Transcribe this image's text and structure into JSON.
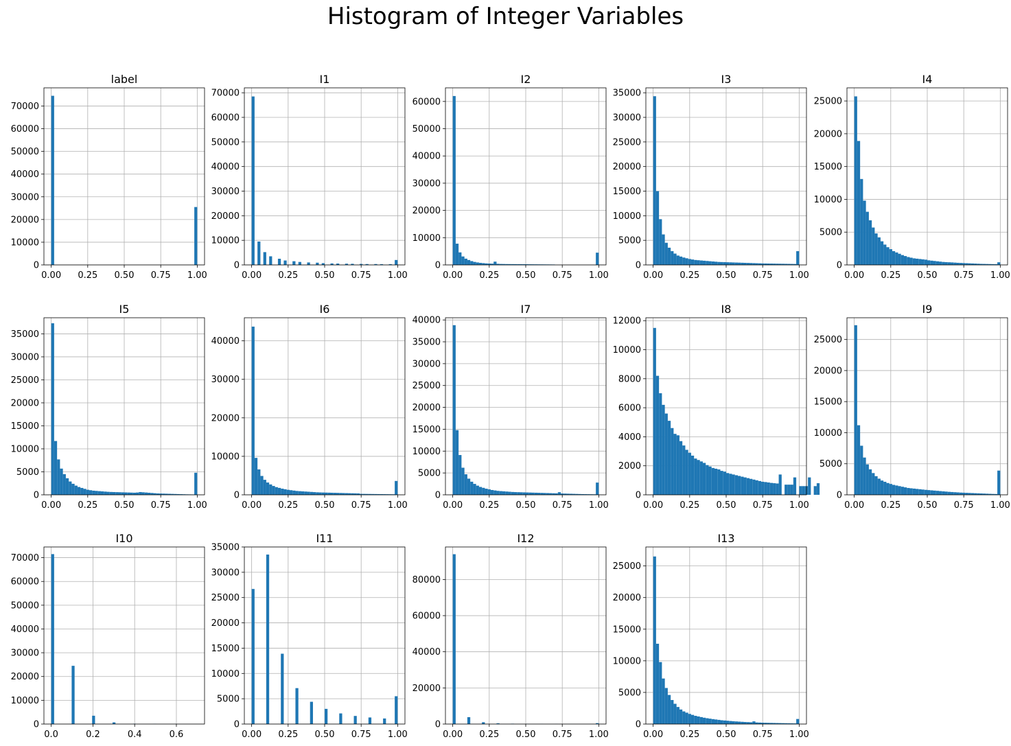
{
  "title": "Histogram of Integer Variables",
  "colors": {
    "bar": "#1f77b4",
    "grid": "#b0b0b0",
    "axis": "#000000"
  },
  "chart_data": [
    {
      "type": "bar",
      "title": "label",
      "grid": true,
      "xlim": [
        -0.05,
        1.05
      ],
      "ylim": [
        0,
        78000
      ],
      "xticks": [
        0,
        0.25,
        0.5,
        0.75,
        1
      ],
      "xtick_labels": [
        "0.00",
        "0.25",
        "0.50",
        "0.75",
        "1.00"
      ],
      "yticks": [
        0,
        10000,
        20000,
        30000,
        40000,
        50000,
        60000,
        70000
      ],
      "bins": [
        [
          0.0,
          0.02,
          74500
        ],
        [
          0.98,
          1.0,
          25500
        ]
      ]
    },
    {
      "type": "bar",
      "title": "I1",
      "grid": true,
      "xlim": [
        -0.05,
        1.05
      ],
      "ylim": [
        0,
        72000
      ],
      "xticks": [
        0,
        0.25,
        0.5,
        0.75,
        1
      ],
      "xtick_labels": [
        "0.00",
        "0.25",
        "0.50",
        "0.75",
        "1.00"
      ],
      "yticks": [
        0,
        10000,
        20000,
        30000,
        40000,
        50000,
        60000,
        70000
      ],
      "bins": [
        [
          0.0,
          0.02,
          68500
        ],
        [
          0.04,
          0.06,
          9500
        ],
        [
          0.08,
          0.1,
          5200
        ],
        [
          0.12,
          0.14,
          3500
        ],
        [
          0.18,
          0.2,
          2500
        ],
        [
          0.22,
          0.24,
          1800
        ],
        [
          0.28,
          0.3,
          1500
        ],
        [
          0.32,
          0.34,
          1200
        ],
        [
          0.38,
          0.4,
          1000
        ],
        [
          0.44,
          0.46,
          900
        ],
        [
          0.48,
          0.5,
          700
        ],
        [
          0.54,
          0.56,
          600
        ],
        [
          0.58,
          0.6,
          550
        ],
        [
          0.64,
          0.66,
          500
        ],
        [
          0.68,
          0.7,
          450
        ],
        [
          0.74,
          0.76,
          400
        ],
        [
          0.78,
          0.8,
          350
        ],
        [
          0.84,
          0.86,
          350
        ],
        [
          0.88,
          0.9,
          300
        ],
        [
          0.94,
          0.96,
          300
        ],
        [
          0.98,
          1.0,
          2000
        ]
      ]
    },
    {
      "type": "bar",
      "title": "I2",
      "grid": true,
      "xlim": [
        -0.05,
        1.05
      ],
      "ylim": [
        0,
        65000
      ],
      "xticks": [
        0,
        0.25,
        0.5,
        0.75,
        1
      ],
      "xtick_labels": [
        "0.00",
        "0.25",
        "0.50",
        "0.75",
        "1.00"
      ],
      "yticks": [
        0,
        10000,
        20000,
        30000,
        40000,
        50000,
        60000
      ],
      "step": 0.02,
      "start": 0,
      "values": [
        62000,
        7800,
        4600,
        3100,
        2300,
        1800,
        1400,
        1100,
        900,
        750,
        650,
        550,
        500,
        450,
        1200,
        400,
        350,
        330,
        310,
        300,
        290,
        280,
        270,
        260,
        250,
        240,
        230,
        220,
        210,
        200,
        190,
        180,
        170,
        160,
        150,
        0,
        0,
        0,
        0,
        0,
        0,
        0,
        0,
        0,
        0,
        0,
        0,
        0,
        0,
        4500
      ]
    },
    {
      "type": "bar",
      "title": "I3",
      "grid": true,
      "xlim": [
        -0.05,
        1.05
      ],
      "ylim": [
        0,
        36000
      ],
      "xticks": [
        0,
        0.25,
        0.5,
        0.75,
        1
      ],
      "xtick_labels": [
        "0.00",
        "0.25",
        "0.50",
        "0.75",
        "1.00"
      ],
      "yticks": [
        0,
        5000,
        10000,
        15000,
        20000,
        25000,
        30000,
        35000
      ],
      "step": 0.02,
      "start": 0,
      "values": [
        34300,
        15000,
        9300,
        6200,
        4500,
        3500,
        2800,
        2300,
        1900,
        1700,
        1500,
        1350,
        1200,
        1100,
        1000,
        950,
        900,
        850,
        800,
        750,
        700,
        650,
        600,
        580,
        560,
        540,
        520,
        500,
        480,
        460,
        440,
        420,
        400,
        380,
        360,
        340,
        320,
        300,
        290,
        280,
        270,
        260,
        250,
        240,
        230,
        220,
        210,
        200,
        190,
        2800
      ]
    },
    {
      "type": "bar",
      "title": "I4",
      "grid": true,
      "xlim": [
        -0.05,
        1.05
      ],
      "ylim": [
        0,
        27000
      ],
      "xticks": [
        0,
        0.25,
        0.5,
        0.75,
        1
      ],
      "xtick_labels": [
        "0.00",
        "0.25",
        "0.50",
        "0.75",
        "1.00"
      ],
      "yticks": [
        0,
        5000,
        10000,
        15000,
        20000,
        25000
      ],
      "step": 0.02,
      "start": 0,
      "values": [
        25700,
        18900,
        13100,
        9800,
        8100,
        6800,
        5700,
        4800,
        4200,
        3600,
        3100,
        2700,
        2400,
        2100,
        1900,
        1700,
        1500,
        1350,
        1200,
        1100,
        1000,
        950,
        900,
        850,
        800,
        700,
        650,
        600,
        550,
        500,
        450,
        420,
        400,
        380,
        350,
        320,
        300,
        280,
        260,
        240,
        220,
        200,
        180,
        160,
        150,
        140,
        130,
        120,
        110,
        400
      ]
    },
    {
      "type": "bar",
      "title": "I5",
      "grid": true,
      "xlim": [
        -0.05,
        1.05
      ],
      "ylim": [
        0,
        38500
      ],
      "xticks": [
        0,
        0.25,
        0.5,
        0.75,
        1
      ],
      "xtick_labels": [
        "0.00",
        "0.25",
        "0.50",
        "0.75",
        "1.00"
      ],
      "yticks": [
        0,
        5000,
        10000,
        15000,
        20000,
        25000,
        30000,
        35000
      ],
      "step": 0.02,
      "start": 0,
      "values": [
        37300,
        11700,
        7700,
        5700,
        4500,
        3600,
        2900,
        2400,
        2000,
        1700,
        1500,
        1300,
        1100,
        1000,
        900,
        850,
        800,
        750,
        700,
        650,
        620,
        600,
        580,
        560,
        540,
        520,
        500,
        480,
        460,
        500,
        600,
        550,
        500,
        450,
        400,
        350,
        300,
        280,
        260,
        240,
        220,
        200,
        180,
        160,
        140,
        120,
        100,
        90,
        80,
        4800
      ]
    },
    {
      "type": "bar",
      "title": "I6",
      "grid": true,
      "xlim": [
        -0.05,
        1.05
      ],
      "ylim": [
        0,
        46000
      ],
      "xticks": [
        0,
        0.25,
        0.5,
        0.75,
        1
      ],
      "xtick_labels": [
        "0.00",
        "0.25",
        "0.50",
        "0.75",
        "1.00"
      ],
      "yticks": [
        0,
        10000,
        20000,
        30000,
        40000
      ],
      "step": 0.02,
      "start": 0,
      "values": [
        43700,
        9600,
        6600,
        4900,
        3900,
        3200,
        2700,
        2300,
        2000,
        1800,
        1600,
        1450,
        1300,
        1200,
        1100,
        1000,
        950,
        900,
        850,
        800,
        750,
        700,
        650,
        620,
        600,
        580,
        560,
        540,
        520,
        500,
        480,
        460,
        440,
        420,
        400,
        380,
        360,
        250,
        240,
        230,
        220,
        210,
        200,
        190,
        180,
        170,
        160,
        150,
        140,
        3600
      ]
    },
    {
      "type": "bar",
      "title": "I7",
      "grid": true,
      "xlim": [
        -0.05,
        1.05
      ],
      "ylim": [
        0,
        40500
      ],
      "xticks": [
        0,
        0.25,
        0.5,
        0.75,
        1
      ],
      "xtick_labels": [
        "0.00",
        "0.25",
        "0.50",
        "0.75",
        "1.00"
      ],
      "yticks": [
        0,
        5000,
        10000,
        15000,
        20000,
        25000,
        30000,
        35000,
        40000
      ],
      "step": 0.02,
      "start": 0,
      "values": [
        38800,
        14800,
        9100,
        6200,
        4700,
        3700,
        3000,
        2500,
        2100,
        1800,
        1600,
        1400,
        1250,
        1100,
        1000,
        900,
        850,
        800,
        750,
        700,
        650,
        620,
        600,
        580,
        560,
        540,
        520,
        500,
        480,
        460,
        440,
        420,
        400,
        380,
        360,
        340,
        600,
        300,
        280,
        260,
        240,
        220,
        200,
        180,
        160,
        150,
        140,
        130,
        120,
        2800
      ]
    },
    {
      "type": "bar",
      "title": "I8",
      "grid": true,
      "xlim": [
        -0.05,
        1.05
      ],
      "ylim": [
        0,
        12200
      ],
      "xticks": [
        0,
        0.25,
        0.5,
        0.75,
        1
      ],
      "xtick_labels": [
        "0.00",
        "0.25",
        "0.50",
        "0.75",
        "1.00"
      ],
      "yticks": [
        0,
        2000,
        4000,
        6000,
        8000,
        10000,
        12000
      ],
      "step": 0.02,
      "start": 0,
      "values": [
        11500,
        8200,
        7000,
        6200,
        5600,
        5100,
        4600,
        4200,
        4100,
        3700,
        3400,
        3100,
        2900,
        2700,
        2500,
        2400,
        2300,
        2200,
        2050,
        1950,
        1850,
        1800,
        1750,
        1650,
        1600,
        1500,
        1450,
        1400,
        1350,
        1300,
        1250,
        1200,
        1150,
        1100,
        1050,
        1000,
        950,
        900,
        880,
        850,
        820,
        800,
        780,
        1400,
        0,
        700,
        700,
        700,
        1200,
        0,
        600,
        600,
        600,
        1200,
        0,
        600,
        800
      ]
    },
    {
      "type": "bar",
      "title": "I9",
      "grid": true,
      "xlim": [
        -0.05,
        1.05
      ],
      "ylim": [
        0,
        28500
      ],
      "xticks": [
        0,
        0.25,
        0.5,
        0.75,
        1
      ],
      "xtick_labels": [
        "0.00",
        "0.25",
        "0.50",
        "0.75",
        "1.00"
      ],
      "yticks": [
        0,
        5000,
        10000,
        15000,
        20000,
        25000
      ],
      "step": 0.02,
      "start": 0,
      "values": [
        27300,
        11200,
        7900,
        6000,
        4900,
        4100,
        3500,
        3000,
        2600,
        2300,
        2100,
        1900,
        1750,
        1600,
        1500,
        1400,
        1300,
        1200,
        1100,
        1050,
        1000,
        950,
        900,
        850,
        800,
        760,
        720,
        680,
        640,
        600,
        560,
        520,
        480,
        450,
        420,
        390,
        360,
        340,
        320,
        300,
        280,
        260,
        240,
        220,
        200,
        180,
        160,
        140,
        130,
        3900
      ]
    },
    {
      "type": "bar",
      "title": "I10",
      "grid": true,
      "xlim": [
        -0.035,
        0.735
      ],
      "ylim": [
        0,
        74500
      ],
      "xticks": [
        0,
        0.2,
        0.4,
        0.6
      ],
      "xtick_labels": [
        "0.0",
        "0.2",
        "0.4",
        "0.6"
      ],
      "yticks": [
        0,
        10000,
        20000,
        30000,
        40000,
        50000,
        60000,
        70000
      ],
      "bins": [
        [
          0.0,
          0.014,
          71500
        ],
        [
          0.098,
          0.112,
          24500
        ],
        [
          0.196,
          0.21,
          3500
        ],
        [
          0.294,
          0.308,
          700
        ],
        [
          0.392,
          0.406,
          150
        ],
        [
          0.49,
          0.504,
          80
        ],
        [
          0.588,
          0.602,
          40
        ],
        [
          0.686,
          0.7,
          20
        ]
      ]
    },
    {
      "type": "bar",
      "title": "I11",
      "grid": true,
      "xlim": [
        -0.05,
        1.05
      ],
      "ylim": [
        0,
        35000
      ],
      "xticks": [
        0,
        0.25,
        0.5,
        0.75,
        1
      ],
      "xtick_labels": [
        "0.00",
        "0.25",
        "0.50",
        "0.75",
        "1.00"
      ],
      "yticks": [
        0,
        5000,
        10000,
        15000,
        20000,
        25000,
        30000,
        35000
      ],
      "bins": [
        [
          0.0,
          0.02,
          26700
        ],
        [
          0.1,
          0.12,
          33500
        ],
        [
          0.2,
          0.22,
          13900
        ],
        [
          0.3,
          0.32,
          7100
        ],
        [
          0.4,
          0.42,
          4400
        ],
        [
          0.5,
          0.52,
          3000
        ],
        [
          0.6,
          0.62,
          2100
        ],
        [
          0.7,
          0.72,
          1600
        ],
        [
          0.8,
          0.82,
          1300
        ],
        [
          0.9,
          0.92,
          1100
        ],
        [
          0.98,
          1.0,
          5500
        ]
      ]
    },
    {
      "type": "bar",
      "title": "I12",
      "grid": true,
      "xlim": [
        -0.05,
        1.05
      ],
      "ylim": [
        0,
        98000
      ],
      "xticks": [
        0,
        0.25,
        0.5,
        0.75,
        1
      ],
      "xtick_labels": [
        "0.00",
        "0.25",
        "0.50",
        "0.75",
        "1.00"
      ],
      "yticks": [
        0,
        20000,
        40000,
        60000,
        80000
      ],
      "bins": [
        [
          0.0,
          0.02,
          94000
        ],
        [
          0.1,
          0.12,
          3800
        ],
        [
          0.2,
          0.22,
          1000
        ],
        [
          0.3,
          0.32,
          400
        ],
        [
          0.4,
          0.42,
          200
        ],
        [
          0.5,
          0.52,
          100
        ],
        [
          0.6,
          0.62,
          80
        ],
        [
          0.7,
          0.72,
          60
        ],
        [
          0.8,
          0.82,
          40
        ],
        [
          0.98,
          1.0,
          500
        ]
      ]
    },
    {
      "type": "bar",
      "title": "I13",
      "grid": true,
      "xlim": [
        -0.05,
        1.05
      ],
      "ylim": [
        0,
        28000
      ],
      "xticks": [
        0,
        0.25,
        0.5,
        0.75,
        1
      ],
      "xtick_labels": [
        "0.00",
        "0.25",
        "0.50",
        "0.75",
        "1.00"
      ],
      "yticks": [
        0,
        5000,
        10000,
        15000,
        20000,
        25000
      ],
      "step": 0.02,
      "start": 0,
      "values": [
        26500,
        12700,
        9800,
        7200,
        5700,
        4600,
        3800,
        3200,
        2700,
        2300,
        2000,
        1800,
        1600,
        1450,
        1300,
        1200,
        1100,
        1000,
        920,
        850,
        780,
        720,
        660,
        600,
        560,
        520,
        480,
        440,
        410,
        380,
        350,
        320,
        300,
        280,
        420,
        250,
        230,
        210,
        200,
        190,
        180,
        170,
        160,
        150,
        140,
        130,
        120,
        110,
        100,
        800
      ]
    }
  ]
}
